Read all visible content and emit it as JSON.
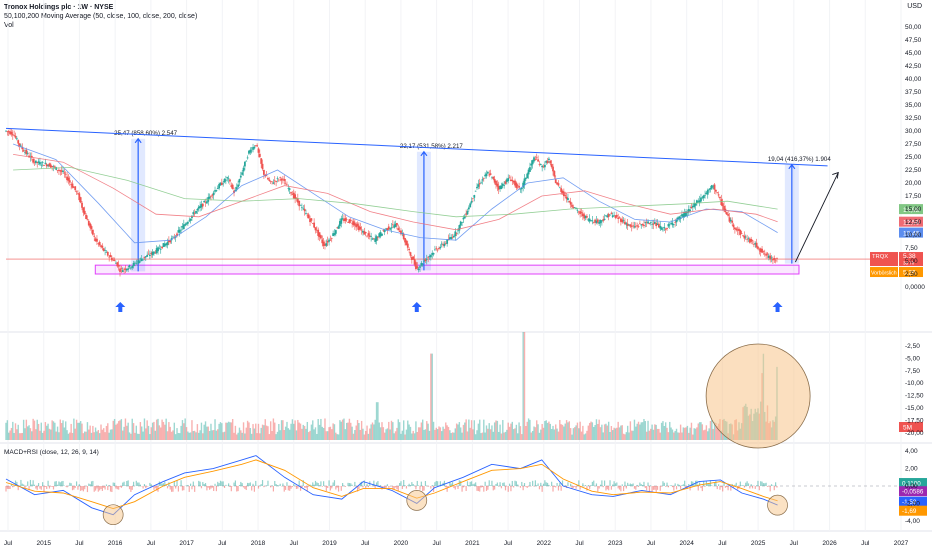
{
  "header": {
    "symbol_line": "Tronox Holdings plc · 1W · NYSE",
    "ma_line": "50,100,200 Moving Average (50, close, 100, close, 200, close)",
    "vol_line": "Vol",
    "currency": "USD"
  },
  "colors": {
    "candle_up": "#26a69a",
    "candle_down": "#ef5350",
    "ma50": "#5b8def",
    "ma100": "#ef6b73",
    "ma200": "#81c784",
    "trendline": "#2962ff",
    "support_box": "#e040fb",
    "highlight_circle": "#f7c58a",
    "macd": "#2962ff",
    "signal": "#ff9800"
  },
  "chart_data": [
    {
      "type": "candlestick",
      "pane": "price",
      "x_axis_labels": [
        "Jul",
        "2015",
        "Jul",
        "2016",
        "Jul",
        "2017",
        "Jul",
        "2018",
        "Jul",
        "2019",
        "Jul",
        "2020",
        "Jul",
        "2021",
        "Jul",
        "2022",
        "Jul",
        "2023",
        "Jul",
        "2024",
        "Jul",
        "2025",
        "Jul",
        "2026",
        "Jul",
        "2027"
      ],
      "y_ticks": [
        "50,00",
        "47,50",
        "45,00",
        "42,50",
        "40,00",
        "37,50",
        "35,00",
        "32,50",
        "30,00",
        "27,50",
        "25,00",
        "22,50",
        "20,00",
        "17,50",
        "15,00",
        "12,50",
        "10,00",
        "7,50",
        "5,00",
        "2,50",
        "0,0000"
      ],
      "ylim": [
        0,
        50
      ],
      "close_path": [
        [
          2014.5,
          30.0
        ],
        [
          2014.6,
          29.5
        ],
        [
          2014.7,
          27.0
        ],
        [
          2014.9,
          24.0
        ],
        [
          2015.1,
          23.5
        ],
        [
          2015.3,
          22.0
        ],
        [
          2015.5,
          18.0
        ],
        [
          2015.6,
          14.0
        ],
        [
          2015.75,
          9.0
        ],
        [
          2015.9,
          6.5
        ],
        [
          2016.05,
          4.5
        ],
        [
          2016.1,
          3.2
        ],
        [
          2016.25,
          4.0
        ],
        [
          2016.4,
          5.5
        ],
        [
          2016.55,
          6.5
        ],
        [
          2016.7,
          8.0
        ],
        [
          2016.85,
          9.5
        ],
        [
          2017.0,
          12.0
        ],
        [
          2017.15,
          14.5
        ],
        [
          2017.3,
          16.5
        ],
        [
          2017.45,
          19.0
        ],
        [
          2017.6,
          21.0
        ],
        [
          2017.7,
          18.0
        ],
        [
          2017.8,
          22.0
        ],
        [
          2017.9,
          26.0
        ],
        [
          2018.0,
          27.5
        ],
        [
          2018.1,
          22.0
        ],
        [
          2018.2,
          20.0
        ],
        [
          2018.35,
          21.0
        ],
        [
          2018.5,
          18.0
        ],
        [
          2018.65,
          15.0
        ],
        [
          2018.8,
          12.0
        ],
        [
          2018.95,
          8.0
        ],
        [
          2019.05,
          9.5
        ],
        [
          2019.2,
          13.0
        ],
        [
          2019.35,
          12.5
        ],
        [
          2019.5,
          10.5
        ],
        [
          2019.65,
          9.0
        ],
        [
          2019.8,
          11.0
        ],
        [
          2019.95,
          12.0
        ],
        [
          2020.05,
          10.0
        ],
        [
          2020.15,
          6.5
        ],
        [
          2020.25,
          3.5
        ],
        [
          2020.35,
          5.0
        ],
        [
          2020.5,
          7.0
        ],
        [
          2020.65,
          8.5
        ],
        [
          2020.8,
          10.5
        ],
        [
          2020.95,
          14.5
        ],
        [
          2021.1,
          19.5
        ],
        [
          2021.25,
          22.0
        ],
        [
          2021.4,
          19.0
        ],
        [
          2021.55,
          21.0
        ],
        [
          2021.7,
          18.5
        ],
        [
          2021.8,
          22.0
        ],
        [
          2021.9,
          25.0
        ],
        [
          2022.0,
          23.0
        ],
        [
          2022.1,
          24.5
        ],
        [
          2022.2,
          20.0
        ],
        [
          2022.35,
          17.0
        ],
        [
          2022.5,
          14.5
        ],
        [
          2022.65,
          13.0
        ],
        [
          2022.8,
          12.5
        ],
        [
          2022.95,
          14.0
        ],
        [
          2023.1,
          13.0
        ],
        [
          2023.25,
          11.5
        ],
        [
          2023.4,
          12.0
        ],
        [
          2023.55,
          12.5
        ],
        [
          2023.7,
          11.0
        ],
        [
          2023.85,
          12.5
        ],
        [
          2024.0,
          14.0
        ],
        [
          2024.15,
          16.0
        ],
        [
          2024.3,
          18.0
        ],
        [
          2024.4,
          19.5
        ],
        [
          2024.5,
          16.5
        ],
        [
          2024.6,
          13.5
        ],
        [
          2024.7,
          11.5
        ],
        [
          2024.8,
          10.0
        ],
        [
          2024.9,
          9.0
        ],
        [
          2025.0,
          8.0
        ],
        [
          2025.1,
          6.5
        ],
        [
          2025.2,
          5.5
        ],
        [
          2025.3,
          5.38
        ]
      ],
      "moving_averages": [
        {
          "name": "MA 50",
          "color_key": "ma50",
          "last_value": "10,46",
          "points": [
            [
              2014.6,
              27.5
            ],
            [
              2015.2,
              24.5
            ],
            [
              2015.8,
              16.0
            ],
            [
              2016.3,
              8.5
            ],
            [
              2016.8,
              9.0
            ],
            [
              2017.3,
              13.5
            ],
            [
              2017.8,
              19.5
            ],
            [
              2018.3,
              22.5
            ],
            [
              2018.8,
              18.0
            ],
            [
              2019.3,
              13.5
            ],
            [
              2019.8,
              11.0
            ],
            [
              2020.3,
              9.5
            ],
            [
              2020.8,
              9.0
            ],
            [
              2021.3,
              15.0
            ],
            [
              2021.8,
              20.0
            ],
            [
              2022.3,
              21.0
            ],
            [
              2022.8,
              16.5
            ],
            [
              2023.3,
              13.0
            ],
            [
              2023.8,
              12.5
            ],
            [
              2024.3,
              15.0
            ],
            [
              2024.8,
              14.5
            ],
            [
              2025.3,
              10.46
            ]
          ]
        },
        {
          "name": "MA 100",
          "color_key": "ma100",
          "last_value": "12,56",
          "points": [
            [
              2014.6,
              25.5
            ],
            [
              2015.3,
              24.0
            ],
            [
              2016.0,
              19.0
            ],
            [
              2016.6,
              14.0
            ],
            [
              2017.2,
              13.5
            ],
            [
              2017.8,
              16.5
            ],
            [
              2018.4,
              19.5
            ],
            [
              2019.0,
              18.0
            ],
            [
              2019.6,
              14.5
            ],
            [
              2020.2,
              12.5
            ],
            [
              2020.8,
              11.0
            ],
            [
              2021.4,
              13.0
            ],
            [
              2022.0,
              17.5
            ],
            [
              2022.6,
              18.5
            ],
            [
              2023.2,
              16.0
            ],
            [
              2023.8,
              14.0
            ],
            [
              2024.4,
              15.0
            ],
            [
              2025.0,
              14.0
            ],
            [
              2025.3,
              12.56
            ]
          ]
        },
        {
          "name": "MA 200",
          "color_key": "ma200",
          "last_value": "14,98",
          "points": [
            [
              2014.6,
              22.5
            ],
            [
              2015.4,
              23.0
            ],
            [
              2016.2,
              20.5
            ],
            [
              2017.0,
              17.0
            ],
            [
              2017.8,
              16.5
            ],
            [
              2018.6,
              17.0
            ],
            [
              2019.4,
              16.0
            ],
            [
              2020.2,
              14.5
            ],
            [
              2020.8,
              13.5
            ],
            [
              2021.6,
              14.0
            ],
            [
              2022.4,
              15.0
            ],
            [
              2023.2,
              15.5
            ],
            [
              2024.0,
              16.0
            ],
            [
              2024.6,
              16.5
            ],
            [
              2025.3,
              14.98
            ]
          ]
        }
      ],
      "last_price": "5,38",
      "price_label": "TRQX",
      "price_sub": "3d 7h",
      "indicator_label": "Vorbörslich",
      "indicator_value": "5,26",
      "measurements": [
        {
          "label": "25,47 (858,60%) 2.547",
          "x": 2016.35,
          "from": 3.0,
          "to": 28.5
        },
        {
          "label": "22,17 (531,58%) 2.217",
          "x": 2020.35,
          "from": 3.2,
          "to": 26.0
        },
        {
          "label": "19,04 (416,37%) 1.904",
          "x": 2025.5,
          "from": 4.5,
          "to": 23.5
        }
      ],
      "trendline": {
        "start": [
          2014.5,
          30.5
        ],
        "end": [
          2026.0,
          23.3
        ]
      },
      "support_box": {
        "x0": 2015.75,
        "x1": 2025.6,
        "y0": 2.5,
        "y1": 4.2
      },
      "arrow": {
        "start": [
          2025.55,
          4.8
        ],
        "end": [
          2026.15,
          22.0
        ]
      },
      "markers_x": [
        2016.1,
        2020.25,
        2025.3
      ]
    },
    {
      "type": "bar",
      "pane": "volume",
      "title": "Vol",
      "y_ticks": [
        "-2,50",
        "-5,00",
        "-7,50",
        "-10,00",
        "-12,50",
        "-15,00",
        "-17,50",
        "-20,00"
      ],
      "last_value": "5M",
      "spikes": [
        [
          2019.7,
          0.35
        ],
        [
          2020.45,
          0.8
        ],
        [
          2021.75,
          1.0
        ],
        [
          2025.1,
          0.6
        ],
        [
          2025.3,
          0.55
        ]
      ],
      "highlight_circle": {
        "x": 2025.0,
        "label": ""
      }
    },
    {
      "type": "line",
      "pane": "indicator",
      "title": "MACD+RSI (close, 12, 26, 9, 14)",
      "y_ticks": [
        "4,00",
        "2,00",
        "0,00",
        "-2,00",
        "-4,00"
      ],
      "ylim": [
        -4.5,
        4.5
      ],
      "macd_value": "0,1100",
      "hist_value": "-0,0586",
      "signal_value": "-1,58",
      "macd2_value": "-1,69",
      "macd_points": [
        [
          2014.5,
          0.8
        ],
        [
          2014.9,
          -1.0
        ],
        [
          2015.3,
          -0.5
        ],
        [
          2015.7,
          -2.5
        ],
        [
          2016.0,
          -3.3
        ],
        [
          2016.3,
          -1.0
        ],
        [
          2016.7,
          0.5
        ],
        [
          2017.0,
          1.5
        ],
        [
          2017.4,
          2.0
        ],
        [
          2017.8,
          3.0
        ],
        [
          2018.0,
          3.5
        ],
        [
          2018.4,
          1.0
        ],
        [
          2018.8,
          -1.0
        ],
        [
          2019.2,
          -1.5
        ],
        [
          2019.5,
          0.5
        ],
        [
          2019.9,
          -0.5
        ],
        [
          2020.25,
          -2.0
        ],
        [
          2020.5,
          -0.2
        ],
        [
          2020.9,
          1.0
        ],
        [
          2021.3,
          2.5
        ],
        [
          2021.7,
          2.0
        ],
        [
          2022.0,
          3.0
        ],
        [
          2022.3,
          0.0
        ],
        [
          2022.7,
          -1.0
        ],
        [
          2023.0,
          -1.2
        ],
        [
          2023.4,
          -0.5
        ],
        [
          2023.8,
          -1.0
        ],
        [
          2024.2,
          0.5
        ],
        [
          2024.5,
          0.7
        ],
        [
          2024.8,
          -0.8
        ],
        [
          2025.1,
          -1.5
        ],
        [
          2025.3,
          -2.2
        ]
      ],
      "signal_points": [
        [
          2014.5,
          0.4
        ],
        [
          2014.9,
          -0.6
        ],
        [
          2015.3,
          -0.8
        ],
        [
          2015.7,
          -1.8
        ],
        [
          2016.0,
          -2.6
        ],
        [
          2016.3,
          -1.8
        ],
        [
          2016.7,
          0.0
        ],
        [
          2017.0,
          1.0
        ],
        [
          2017.4,
          1.7
        ],
        [
          2017.8,
          2.5
        ],
        [
          2018.0,
          3.0
        ],
        [
          2018.4,
          1.8
        ],
        [
          2018.8,
          -0.2
        ],
        [
          2019.2,
          -1.2
        ],
        [
          2019.5,
          -0.3
        ],
        [
          2019.9,
          -0.3
        ],
        [
          2020.25,
          -1.4
        ],
        [
          2020.5,
          -0.8
        ],
        [
          2020.9,
          0.5
        ],
        [
          2021.3,
          1.8
        ],
        [
          2021.7,
          2.0
        ],
        [
          2022.0,
          2.5
        ],
        [
          2022.3,
          0.8
        ],
        [
          2022.7,
          -0.6
        ],
        [
          2023.0,
          -1.0
        ],
        [
          2023.4,
          -0.7
        ],
        [
          2023.8,
          -0.8
        ],
        [
          2024.2,
          0.1
        ],
        [
          2024.5,
          0.5
        ],
        [
          2024.8,
          -0.3
        ],
        [
          2025.1,
          -1.2
        ],
        [
          2025.3,
          -1.7
        ]
      ],
      "circles_x": [
        2016.0,
        2020.25,
        2025.3
      ]
    }
  ]
}
